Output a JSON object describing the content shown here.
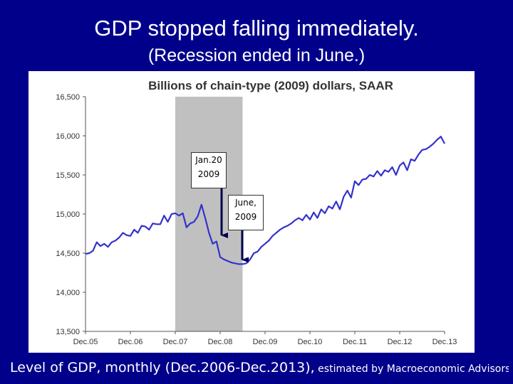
{
  "slide": {
    "title": "GDP stopped falling immediately.",
    "subtitle": "(Recession ended in June.)",
    "caption_main": "Level of GDP, monthly (Dec.2006-Dec.2013),",
    "caption_source": " estimated by Macroeconomic Advisors"
  },
  "colors": {
    "background": "#00008b",
    "line": "#3333cc",
    "recession_band": "#c0c0c0",
    "arrow": "#00004d"
  },
  "chart_data": {
    "type": "line",
    "title": "Billions of chain-type (2009) dollars, SAAR",
    "xlabel": "",
    "ylabel": "",
    "x_ticks": [
      "Dec.05",
      "Dec.06",
      "Dec.07",
      "Dec.08",
      "Dec.09",
      "Dec.10",
      "Dec.11",
      "Dec.12",
      "Dec.13"
    ],
    "xlim": [
      0,
      96
    ],
    "ylim": [
      13500,
      16500
    ],
    "y_ticks": [
      13500,
      14000,
      14500,
      15000,
      15500,
      16000,
      16500
    ],
    "y_tick_labels": [
      "13,500",
      "14,000",
      "14,500",
      "15,000",
      "15,500",
      "16,000",
      "16,500"
    ],
    "recession": {
      "start_month": 24,
      "end_month": 42
    },
    "series": [
      {
        "name": "GDP",
        "points": [
          [
            0,
            14490
          ],
          [
            1,
            14500
          ],
          [
            2,
            14530
          ],
          [
            3,
            14640
          ],
          [
            4,
            14590
          ],
          [
            5,
            14620
          ],
          [
            6,
            14580
          ],
          [
            7,
            14640
          ],
          [
            8,
            14660
          ],
          [
            9,
            14700
          ],
          [
            10,
            14760
          ],
          [
            11,
            14730
          ],
          [
            12,
            14720
          ],
          [
            13,
            14800
          ],
          [
            14,
            14760
          ],
          [
            15,
            14850
          ],
          [
            16,
            14840
          ],
          [
            17,
            14800
          ],
          [
            18,
            14880
          ],
          [
            19,
            14870
          ],
          [
            20,
            14870
          ],
          [
            21,
            14980
          ],
          [
            22,
            14900
          ],
          [
            23,
            15000
          ],
          [
            24,
            15010
          ],
          [
            25,
            14980
          ],
          [
            26,
            15010
          ],
          [
            27,
            14830
          ],
          [
            28,
            14880
          ],
          [
            29,
            14900
          ],
          [
            30,
            14970
          ],
          [
            31,
            15120
          ],
          [
            32,
            14950
          ],
          [
            33,
            14760
          ],
          [
            34,
            14620
          ],
          [
            35,
            14650
          ],
          [
            36,
            14450
          ],
          [
            37,
            14420
          ],
          [
            38,
            14400
          ],
          [
            39,
            14380
          ],
          [
            40,
            14370
          ],
          [
            41,
            14360
          ],
          [
            42,
            14360
          ],
          [
            43,
            14370
          ],
          [
            44,
            14420
          ],
          [
            45,
            14500
          ],
          [
            46,
            14520
          ],
          [
            47,
            14580
          ],
          [
            48,
            14620
          ],
          [
            49,
            14660
          ],
          [
            50,
            14720
          ],
          [
            51,
            14760
          ],
          [
            52,
            14800
          ],
          [
            53,
            14830
          ],
          [
            54,
            14850
          ],
          [
            55,
            14880
          ],
          [
            56,
            14920
          ],
          [
            57,
            14950
          ],
          [
            58,
            14920
          ],
          [
            59,
            14990
          ],
          [
            60,
            14930
          ],
          [
            61,
            15020
          ],
          [
            62,
            14950
          ],
          [
            63,
            15060
          ],
          [
            64,
            15010
          ],
          [
            65,
            15100
          ],
          [
            66,
            15070
          ],
          [
            67,
            15160
          ],
          [
            68,
            15060
          ],
          [
            69,
            15220
          ],
          [
            70,
            15300
          ],
          [
            71,
            15210
          ],
          [
            72,
            15420
          ],
          [
            73,
            15370
          ],
          [
            74,
            15440
          ],
          [
            75,
            15450
          ],
          [
            76,
            15500
          ],
          [
            77,
            15480
          ],
          [
            78,
            15550
          ],
          [
            79,
            15490
          ],
          [
            80,
            15560
          ],
          [
            81,
            15540
          ],
          [
            82,
            15600
          ],
          [
            83,
            15500
          ],
          [
            84,
            15620
          ],
          [
            85,
            15660
          ],
          [
            86,
            15560
          ],
          [
            87,
            15700
          ],
          [
            88,
            15680
          ],
          [
            89,
            15760
          ],
          [
            90,
            15820
          ],
          [
            91,
            15830
          ],
          [
            92,
            15860
          ],
          [
            93,
            15900
          ],
          [
            94,
            15950
          ],
          [
            95,
            15990
          ],
          [
            96,
            15900
          ]
        ]
      }
    ],
    "annotations": [
      {
        "id": "jan",
        "line1": "Jan.20",
        "line2": "2009",
        "arrow_month": 38,
        "arrow_value": 14400
      },
      {
        "id": "june",
        "line1": "June,",
        "line2": "2009",
        "arrow_month": 42,
        "arrow_value": 14360
      }
    ]
  }
}
